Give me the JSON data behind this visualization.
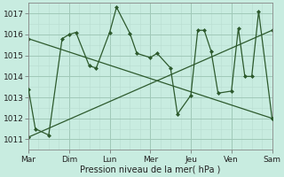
{
  "title": "",
  "xlabel": "Pression niveau de la mer( hPa )",
  "background_color": "#c8ece0",
  "grid_color_major": "#a0c8b8",
  "grid_color_minor": "#b8ddd0",
  "line_color": "#2d5a2d",
  "xlim": [
    0,
    6
  ],
  "ylim": [
    1010.5,
    1017.5
  ],
  "yticks": [
    1011,
    1012,
    1013,
    1014,
    1015,
    1016,
    1017
  ],
  "day_labels": [
    "Mar",
    "Dim",
    "Lun",
    "Mer",
    "Jeu",
    "Ven",
    "Sam"
  ],
  "day_positions": [
    0,
    1,
    2,
    3,
    4,
    5,
    6
  ],
  "series": [
    {
      "x": [
        0.0,
        0.17,
        0.5,
        0.83,
        1.0,
        1.17,
        1.5,
        1.67,
        2.0,
        2.17,
        2.5,
        2.67,
        3.0,
        3.17,
        3.5,
        3.67,
        4.0,
        4.17,
        4.33,
        4.5,
        4.67,
        5.0,
        5.17,
        5.33,
        5.5,
        5.67,
        6.0
      ],
      "y": [
        1013.4,
        1011.5,
        1011.2,
        1015.8,
        1016.0,
        1016.1,
        1014.5,
        1014.4,
        1016.1,
        1017.3,
        1016.05,
        1015.1,
        1014.9,
        1015.1,
        1014.4,
        1012.2,
        1013.1,
        1016.2,
        1016.2,
        1015.2,
        1013.2,
        1013.3,
        1016.3,
        1014.0,
        1014.0,
        1017.1,
        1012.0
      ]
    },
    {
      "x": [
        0.0,
        6.0
      ],
      "y": [
        1011.1,
        1016.2
      ]
    },
    {
      "x": [
        0.0,
        6.0
      ],
      "y": [
        1015.8,
        1012.0
      ]
    }
  ]
}
